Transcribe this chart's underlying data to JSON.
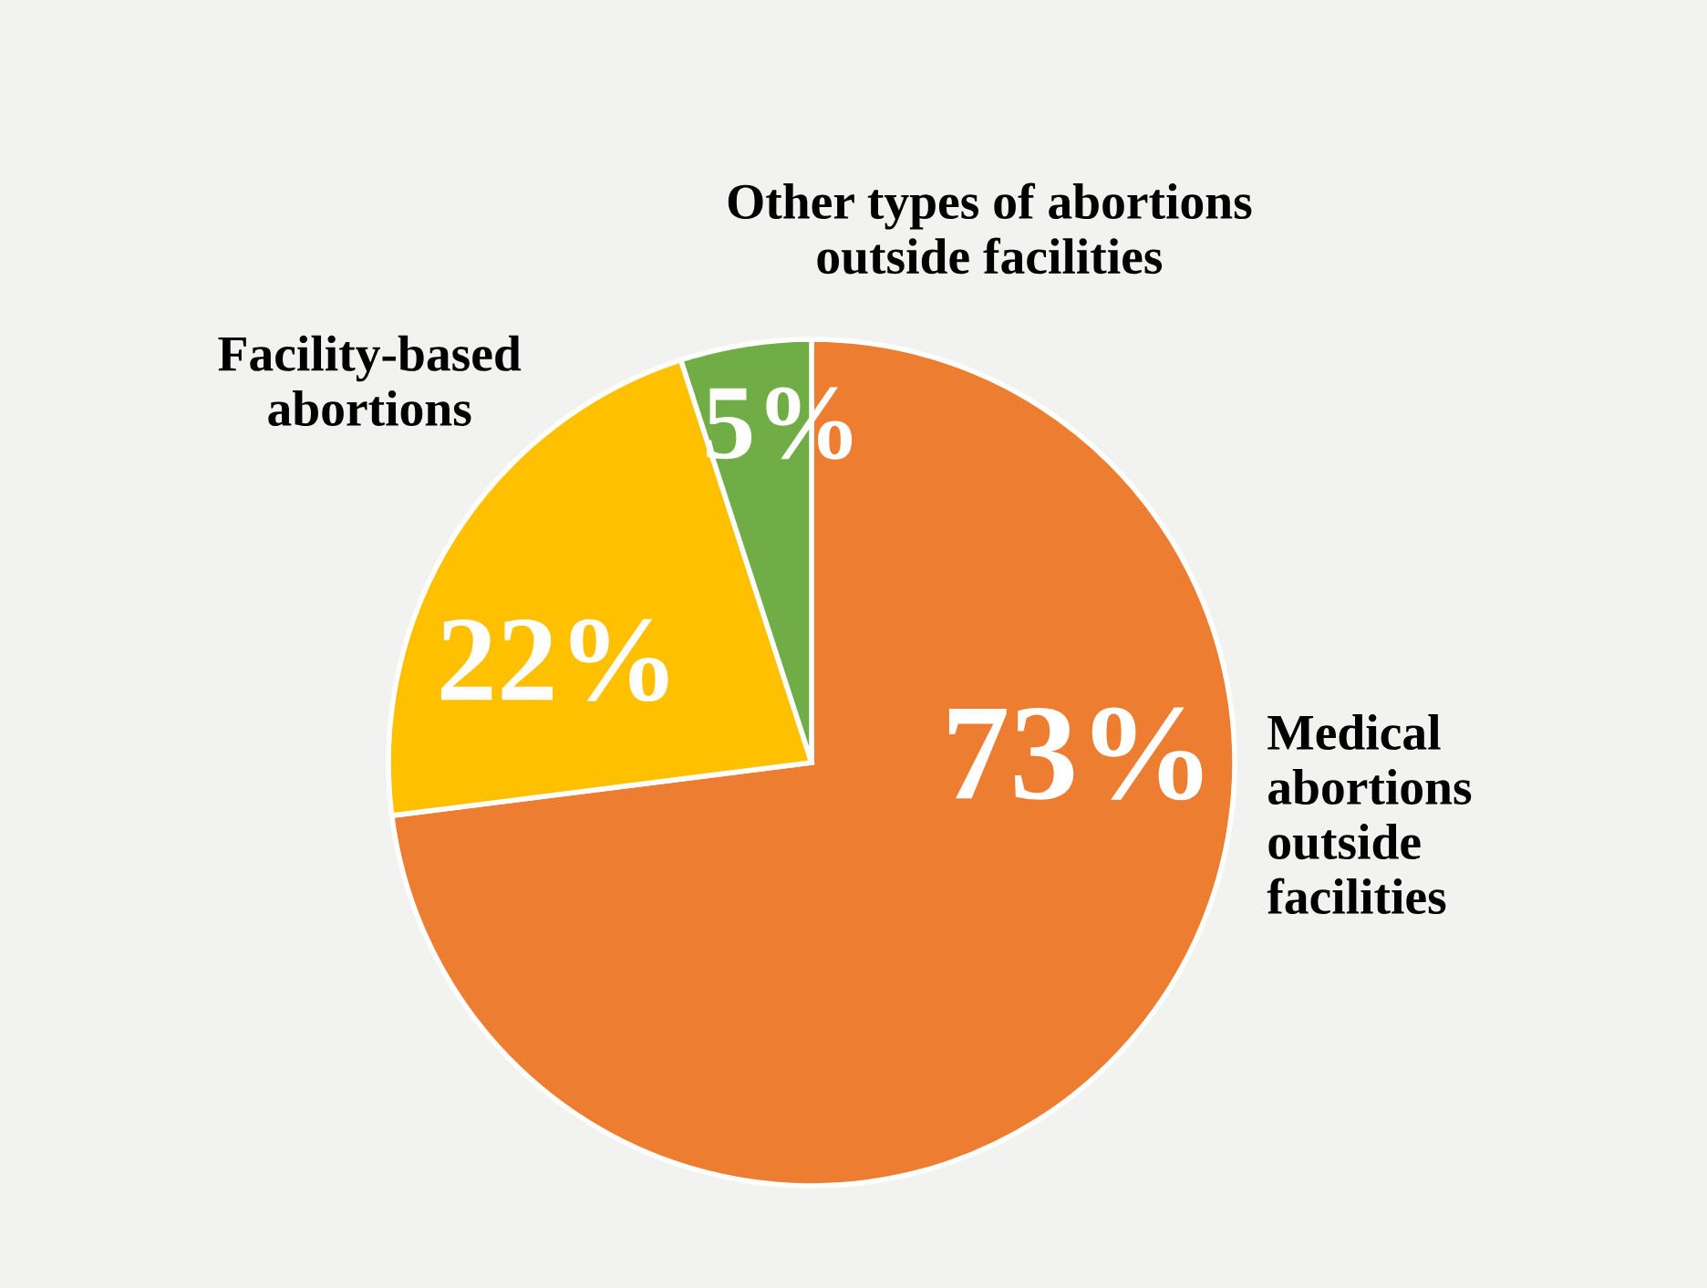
{
  "chart_data": {
    "type": "pie",
    "categories": [
      "Medical\nabortions\noutside\nfacilities",
      "Facility-based\nabortions",
      "Other types of abortions\noutside facilities"
    ],
    "values": [
      73,
      22,
      5
    ],
    "colors": [
      "#ed7d31",
      "#ffc000",
      "#70ad47"
    ],
    "value_labels": [
      "73%",
      "22%",
      "5%"
    ],
    "legend": false
  }
}
